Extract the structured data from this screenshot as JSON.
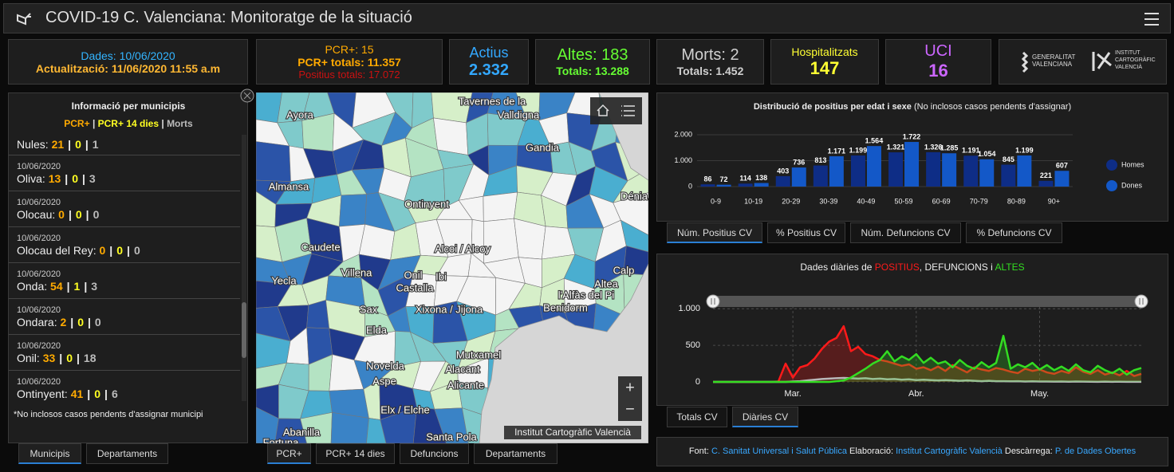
{
  "header": {
    "title": "COVID-19 C. Valenciana: Monitoratge de la situació"
  },
  "kpis": {
    "dates": {
      "data": "Dades: 10/06/2020",
      "updated": "Actualització: 11/06/2020 11:55 a.m"
    },
    "pcr": {
      "daily": "PCR+: 15",
      "total": "PCR+ totals: 11.357",
      "positives": "Positius totals: 17.072"
    },
    "active": {
      "label": "Actius",
      "value": "2.332"
    },
    "discharges": {
      "daily": "Altes: 183",
      "total": "Totals: 13.288"
    },
    "deaths": {
      "daily": "Morts: 2",
      "total": "Totals: 1.452"
    },
    "hospital": {
      "label": "Hospitalitzats",
      "value": "147"
    },
    "icu": {
      "label": "UCI",
      "value": "16"
    }
  },
  "logos": {
    "gva": [
      "GENERALITAT",
      "VALENCIANA"
    ],
    "icv": [
      "INSTITUT",
      "CARTOGRÀFIC",
      "VALENCIÀ"
    ]
  },
  "municipalities": {
    "title": "Informació per municipis",
    "legend": [
      "PCR+",
      "PCR+ 14 dies",
      "Morts"
    ],
    "separator": "|",
    "items": [
      {
        "name": "Nules:",
        "values": [
          "21",
          "0",
          "1"
        ]
      },
      {
        "date": "10/06/2020",
        "name": "Oliva:",
        "values": [
          "13",
          "0",
          "3"
        ]
      },
      {
        "date": "10/06/2020",
        "name": "Olocau:",
        "values": [
          "0",
          "0",
          "0"
        ]
      },
      {
        "date": "10/06/2020",
        "name": "Olocau del Rey:",
        "values": [
          "0",
          "0",
          "0"
        ]
      },
      {
        "date": "10/06/2020",
        "name": "Onda:",
        "values": [
          "54",
          "1",
          "3"
        ]
      },
      {
        "date": "10/06/2020",
        "name": "Ondara:",
        "values": [
          "2",
          "0",
          "0"
        ]
      },
      {
        "date": "10/06/2020",
        "name": "Onil:",
        "values": [
          "33",
          "0",
          "18"
        ]
      },
      {
        "date": "10/06/2020",
        "name": "Ontinyent:",
        "values": [
          "41",
          "0",
          "6"
        ]
      }
    ],
    "note": "*No inclosos casos pendents d'assignar municipi"
  },
  "map": {
    "places": [
      "Tavernes de la",
      "Valldigna",
      "Ayora",
      "Gandia",
      "Almansa",
      "Ontinyent",
      "Dénia",
      "Caudete",
      "Alcoi / Alcoy",
      "Calp",
      "Yecla",
      "Villena",
      "Onil",
      "Ibi",
      "Castalla",
      "Altea",
      "l'Alfàs del Pi",
      "Benidorm",
      "Sax",
      "Xixona / Jijona",
      "Elda",
      "Novelda",
      "Mutxamel",
      "Aspe",
      "Alacant",
      "Alicante",
      "Elx / Elche",
      "Abanilla",
      "Santa Pola",
      "Fortuna"
    ],
    "zoom_in": "+",
    "zoom_out": "−",
    "attribution": "Institut Cartogràfic Valencià"
  },
  "tabs": {
    "list": [
      "Municipis",
      "Departaments"
    ],
    "map": [
      "PCR+",
      "PCR+ 14 dies",
      "Defuncions",
      "Departaments"
    ],
    "age": [
      "Núm. Positius CV",
      "% Positius CV",
      "Núm. Defuncions CV",
      "% Defuncions CV"
    ],
    "daily": [
      "Totals CV",
      "Diàries CV"
    ]
  },
  "chart_data": [
    {
      "type": "bar",
      "title": "Distribució de positius per edat i sexe",
      "subtitle": "(No inclosos casos pendents d'assignar)",
      "categories": [
        "0-9",
        "10-19",
        "20-29",
        "30-39",
        "40-49",
        "50-59",
        "60-69",
        "70-79",
        "80-89",
        "90+"
      ],
      "series": [
        {
          "name": "Homes",
          "color": "#0e2d86",
          "values": [
            86,
            114,
            403,
            813,
            1199,
            1321,
            1326,
            1191,
            845,
            221
          ],
          "value_labels": [
            "86",
            "114",
            "403",
            "813",
            "1.199",
            "1.321",
            "1.326",
            "1.191",
            "845",
            "221"
          ]
        },
        {
          "name": "Dones",
          "color": "#1358c8",
          "values": [
            72,
            138,
            736,
            1171,
            1564,
            1722,
            1285,
            1054,
            1199,
            607
          ],
          "value_labels": [
            "72",
            "138",
            "736",
            "1.171",
            "1.564",
            "1.722",
            "1.285",
            "1.054",
            "1.199",
            "607"
          ]
        }
      ],
      "ylim": [
        0,
        2000
      ],
      "yticks": [
        0,
        {
          "value": 1000,
          "label": "1.000"
        },
        {
          "value": 2000,
          "label": "2.000"
        }
      ],
      "grid": true
    },
    {
      "type": "line",
      "title_parts": [
        "Dades diàries de ",
        ", ",
        " i "
      ],
      "categories": [
        null,
        null,
        null,
        null,
        null,
        null,
        null,
        null,
        null,
        null,
        null,
        "Mar.",
        null,
        null,
        null,
        null,
        null,
        null,
        null,
        null,
        null,
        null,
        null,
        null,
        null,
        null,
        null,
        null,
        "Abr.",
        null,
        null,
        null,
        null,
        null,
        null,
        null,
        null,
        null,
        null,
        null,
        null,
        null,
        null,
        null,
        null,
        "May.",
        null,
        null,
        null,
        null,
        null,
        null,
        null,
        null,
        null,
        null,
        null,
        null,
        null,
        null
      ],
      "series": [
        {
          "name": "POSITIUS",
          "color": "#ff1a1a",
          "area": true,
          "values": [
            0,
            0,
            0,
            0,
            0,
            0,
            0,
            0,
            0,
            5,
            250,
            60,
            200,
            230,
            320,
            450,
            550,
            600,
            760,
            420,
            480,
            380,
            350,
            300,
            280,
            250,
            220,
            240,
            180,
            200,
            160,
            210,
            150,
            230,
            180,
            130,
            200,
            170,
            150,
            190,
            170,
            140,
            120,
            180,
            150,
            170,
            130,
            110,
            150,
            120,
            200,
            140,
            110,
            160,
            100,
            130,
            90,
            150,
            80,
            110
          ]
        },
        {
          "name": "DEFUNCIONS",
          "color": "#b8b8b8",
          "area": false,
          "values": [
            0,
            0,
            0,
            0,
            0,
            0,
            0,
            0,
            0,
            0,
            0,
            5,
            10,
            20,
            30,
            40,
            45,
            50,
            55,
            50,
            45,
            50,
            40,
            45,
            35,
            40,
            30,
            35,
            25,
            30,
            25,
            20,
            25,
            20,
            15,
            20,
            15,
            10,
            15,
            10,
            10,
            8,
            10,
            5,
            8,
            6,
            5,
            4,
            6,
            3,
            5,
            4,
            3,
            2,
            4,
            2,
            3,
            2,
            2,
            2
          ]
        },
        {
          "name": "ALTES",
          "color": "#33dd22",
          "area": true,
          "values": [
            0,
            0,
            0,
            0,
            0,
            0,
            0,
            0,
            0,
            0,
            0,
            0,
            0,
            0,
            0,
            0,
            0,
            10,
            20,
            60,
            120,
            180,
            250,
            300,
            420,
            280,
            350,
            300,
            380,
            260,
            330,
            250,
            280,
            200,
            300,
            220,
            180,
            270,
            200,
            260,
            630,
            180,
            240,
            200,
            260,
            170,
            230,
            160,
            210,
            150,
            240,
            160,
            130,
            220,
            160,
            120,
            180,
            100,
            160,
            190
          ]
        }
      ],
      "ylim": [
        0,
        1100
      ],
      "yticks": [
        0,
        500,
        {
          "value": 1000,
          "label": "1.000"
        }
      ],
      "grid": true
    }
  ],
  "footer": {
    "parts": [
      "Font:",
      "C. Sanitat Universal i Salut Pública",
      "Elaboració:",
      "Institut Cartogràfic Valencià",
      "Descàrrega:",
      "P. de Dades Obertes"
    ]
  }
}
